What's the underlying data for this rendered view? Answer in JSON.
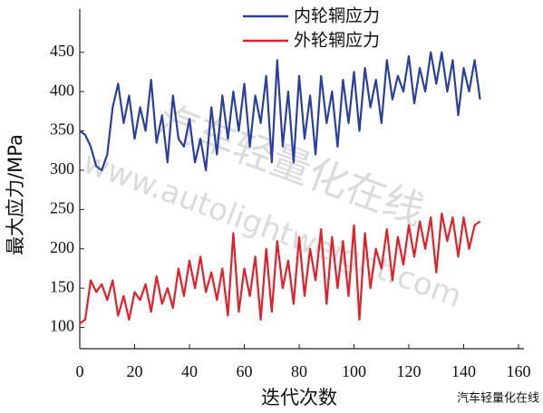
{
  "chart_data": {
    "type": "line",
    "xlabel": "迭代次数",
    "ylabel": "最大应力/MPa",
    "x": [
      0,
      2,
      4,
      6,
      8,
      10,
      12,
      14,
      16,
      18,
      20,
      22,
      24,
      26,
      28,
      30,
      32,
      34,
      36,
      38,
      40,
      42,
      44,
      46,
      48,
      50,
      52,
      54,
      56,
      58,
      60,
      62,
      64,
      66,
      68,
      70,
      72,
      74,
      76,
      78,
      80,
      82,
      84,
      86,
      88,
      90,
      92,
      94,
      96,
      98,
      100,
      102,
      104,
      106,
      108,
      110,
      112,
      114,
      116,
      118,
      120,
      122,
      124,
      126,
      128,
      130,
      132,
      134,
      136,
      138,
      140,
      142,
      144,
      146
    ],
    "series": [
      {
        "name": "内轮辋应力",
        "color": "#2b3f9e",
        "values": [
          350,
          345,
          330,
          305,
          300,
          320,
          380,
          410,
          360,
          395,
          340,
          380,
          350,
          415,
          335,
          370,
          310,
          395,
          340,
          330,
          365,
          310,
          340,
          300,
          380,
          320,
          395,
          340,
          400,
          350,
          410,
          330,
          395,
          360,
          420,
          310,
          440,
          330,
          400,
          310,
          420,
          340,
          395,
          320,
          420,
          360,
          400,
          330,
          415,
          360,
          425,
          350,
          430,
          380,
          415,
          360,
          440,
          390,
          420,
          400,
          445,
          385,
          430,
          400,
          450,
          410,
          450,
          400,
          440,
          370,
          430,
          400,
          440,
          390
        ]
      },
      {
        "name": "外轮辋应力",
        "color": "#e0202a",
        "values": [
          105,
          110,
          160,
          145,
          155,
          135,
          160,
          115,
          140,
          110,
          145,
          135,
          155,
          120,
          165,
          130,
          150,
          125,
          175,
          140,
          185,
          150,
          190,
          145,
          170,
          135,
          175,
          115,
          220,
          120,
          175,
          140,
          190,
          110,
          200,
          120,
          210,
          150,
          185,
          130,
          215,
          140,
          200,
          160,
          225,
          130,
          215,
          150,
          210,
          140,
          230,
          110,
          220,
          150,
          200,
          175,
          225,
          160,
          215,
          180,
          230,
          190,
          235,
          200,
          240,
          170,
          245,
          210,
          240,
          190,
          240,
          200,
          230,
          235
        ]
      }
    ],
    "xlim": [
      0,
      160
    ],
    "xticks": [
      0,
      20,
      40,
      60,
      80,
      100,
      120,
      140,
      160
    ],
    "ylim": [
      73,
      505
    ],
    "yticks": [
      100,
      150,
      200,
      250,
      300,
      350,
      400,
      450
    ],
    "grid": false,
    "annotations": [
      "汽车轻量化在线",
      "www.autolightweight.com"
    ],
    "badge": "汽车轻量化在线"
  }
}
